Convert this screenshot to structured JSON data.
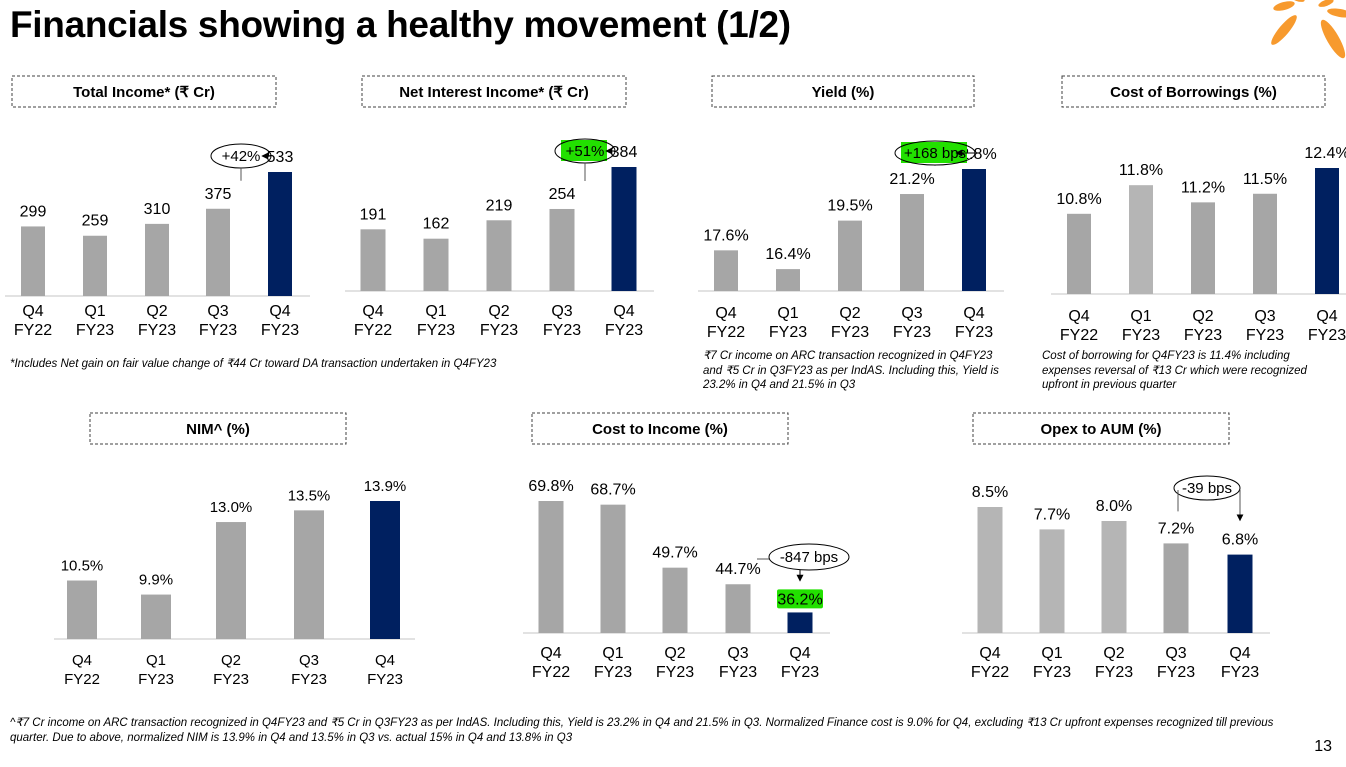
{
  "page": {
    "title": "Financials showing a healthy movement (1/2)",
    "page_number": "13",
    "footnote": "^₹7 Cr income on ARC transaction recognized in Q4FY23 and ₹5 Cr in Q3FY23 as per IndAS. Including this, Yield is 23.2% in Q4 and 21.5% in Q3. Normalized Finance cost is 9.0% for Q4, excluding ₹13 Cr upfront expenses recognized till previous quarter. Due to above, normalized NIM is 13.9% in Q4 and 13.5% in Q3 vs. actual 15% in Q4 and 13.8% in Q3",
    "notes": {
      "total_income": "*Includes Net gain on fair value change of ₹44 Cr toward DA transaction undertaken in Q4FY23",
      "yield": "₹7 Cr income on ARC transaction recognized in Q4FY23 and ₹5 Cr in Q3FY23 as per IndAS. Including this, Yield is 23.2% in Q4 and 21.5% in Q3",
      "cost_of_borrowings": "Cost of borrowing for Q4FY23 is 11.4% including expenses reversal of ₹13 Cr which were recognized upfront in previous quarter"
    }
  },
  "colors": {
    "bar_gray": "#a6a6a6",
    "bar_light_gray": "#b5b5b5",
    "bar_highlight": "#002060",
    "highlight_green": "#22e000",
    "logo_orange": "#f79a2e",
    "axis": "#d9d9d9"
  },
  "chart_data": [
    {
      "id": "total_income",
      "type": "bar",
      "title": "Total Income* (₹ Cr)",
      "categories": [
        "Q4 FY22",
        "Q1 FY23",
        "Q2 FY23",
        "Q3 FY23",
        "Q4 FY23"
      ],
      "category_lines": [
        [
          "Q4",
          "FY22"
        ],
        [
          "Q1",
          "FY23"
        ],
        [
          "Q2",
          "FY23"
        ],
        [
          "Q3",
          "FY23"
        ],
        [
          "Q4",
          "FY23"
        ]
      ],
      "values": [
        299,
        259,
        310,
        375,
        533
      ],
      "labels": [
        "299",
        "259",
        "310",
        "375",
        "533"
      ],
      "highlight_index": 4,
      "annotation": {
        "text": "+42%",
        "from": 3,
        "to": 4,
        "style": "right-arrow",
        "green": false
      },
      "ylim": [
        0,
        600
      ]
    },
    {
      "id": "nii",
      "type": "bar",
      "title": "Net Interest Income* (₹ Cr)",
      "categories": [
        "Q4 FY22",
        "Q1 FY23",
        "Q2 FY23",
        "Q3 FY23",
        "Q4 FY23"
      ],
      "category_lines": [
        [
          "Q4",
          "FY22"
        ],
        [
          "Q1",
          "FY23"
        ],
        [
          "Q2",
          "FY23"
        ],
        [
          "Q3",
          "FY23"
        ],
        [
          "Q4",
          "FY23"
        ]
      ],
      "values": [
        191,
        162,
        219,
        254,
        384
      ],
      "labels": [
        "191",
        "162",
        "219",
        "254",
        "384"
      ],
      "highlight_index": 4,
      "annotation": {
        "text": "+51%",
        "from": 3,
        "to": 4,
        "style": "right-arrow",
        "green": true
      },
      "ylim": [
        0,
        420
      ]
    },
    {
      "id": "yield",
      "type": "bar",
      "title": "Yield (%)",
      "categories": [
        "Q4 FY22",
        "Q1 FY23",
        "Q2 FY23",
        "Q3 FY23",
        "Q4 FY23"
      ],
      "category_lines": [
        [
          "Q4",
          "FY22"
        ],
        [
          "Q1",
          "FY23"
        ],
        [
          "Q2",
          "FY23"
        ],
        [
          "Q3",
          "FY23"
        ],
        [
          "Q4",
          "FY23"
        ]
      ],
      "values": [
        17.6,
        16.4,
        19.5,
        21.2,
        22.8
      ],
      "labels": [
        "17.6%",
        "16.4%",
        "19.5%",
        "21.2%",
        "22.8%"
      ],
      "highlight_index": 4,
      "annotation": {
        "text": "+168 bps",
        "from": 3,
        "to": 4,
        "style": "right-arrow",
        "green": true
      },
      "ylim": [
        15.0,
        24.0
      ]
    },
    {
      "id": "cost_of_borrowings",
      "type": "bar",
      "title": "Cost of Borrowings (%)",
      "categories": [
        "Q4 FY22",
        "Q1 FY23",
        "Q2 FY23",
        "Q3 FY23",
        "Q4 FY23"
      ],
      "category_lines": [
        [
          "Q4",
          "FY22"
        ],
        [
          "Q1",
          "FY23"
        ],
        [
          "Q2",
          "FY23"
        ],
        [
          "Q3",
          "FY23"
        ],
        [
          "Q4",
          "FY23"
        ]
      ],
      "values": [
        10.8,
        11.8,
        11.2,
        11.5,
        12.4
      ],
      "labels": [
        "10.8%",
        "11.8%",
        "11.2%",
        "11.5%",
        "12.4%"
      ],
      "highlight_index": 4,
      "annotation": null,
      "ylim": [
        8.0,
        12.9
      ]
    },
    {
      "id": "nim",
      "type": "bar",
      "title": "NIM^ (%)",
      "categories": [
        "Q4 FY22",
        "Q1 FY23",
        "Q2 FY23",
        "Q3 FY23",
        "Q4 FY23"
      ],
      "category_lines": [
        [
          "Q4",
          "FY22"
        ],
        [
          "Q1",
          "FY23"
        ],
        [
          "Q2",
          "FY23"
        ],
        [
          "Q3",
          "FY23"
        ],
        [
          "Q4",
          "FY23"
        ]
      ],
      "values": [
        10.5,
        9.9,
        13.0,
        13.5,
        13.9
      ],
      "labels": [
        "10.5%",
        "9.9%",
        "13.0%",
        "13.5%",
        "13.9%"
      ],
      "highlight_index": 4,
      "annotation": null,
      "ylim": [
        8.0,
        14.5
      ]
    },
    {
      "id": "cost_to_income",
      "type": "bar",
      "title": "Cost to Income (%)",
      "categories": [
        "Q4 FY22",
        "Q1 FY23",
        "Q2 FY23",
        "Q3 FY23",
        "Q4 FY23"
      ],
      "category_lines": [
        [
          "Q4",
          "FY22"
        ],
        [
          "Q1",
          "FY23"
        ],
        [
          "Q2",
          "FY23"
        ],
        [
          "Q3",
          "FY23"
        ],
        [
          "Q4",
          "FY23"
        ]
      ],
      "values": [
        69.8,
        68.7,
        49.7,
        44.7,
        36.2
      ],
      "labels": [
        "69.8%",
        "68.7%",
        "49.7%",
        "44.7%",
        "36.2%"
      ],
      "highlight_index": 4,
      "highlight_label_green": true,
      "annotation": {
        "text": "-847 bps",
        "from": 3,
        "to": 4,
        "style": "down-arrow",
        "green": false
      },
      "ylim": [
        30.0,
        71.0
      ]
    },
    {
      "id": "opex_to_aum",
      "type": "bar",
      "title": "Opex to AUM (%)",
      "categories": [
        "Q4 FY22",
        "Q1 FY23",
        "Q2 FY23",
        "Q3 FY23",
        "Q4 FY23"
      ],
      "category_lines": [
        [
          "Q4",
          "FY22"
        ],
        [
          "Q1",
          "FY23"
        ],
        [
          "Q2",
          "FY23"
        ],
        [
          "Q3",
          "FY23"
        ],
        [
          "Q4",
          "FY23"
        ]
      ],
      "values": [
        8.5,
        7.7,
        8.0,
        7.2,
        6.8
      ],
      "labels": [
        "8.5%",
        "7.7%",
        "8.0%",
        "7.2%",
        "6.8%"
      ],
      "highlight_index": 4,
      "annotation": {
        "text": "-39 bps",
        "from": 3,
        "to": 4,
        "style": "bracket-down",
        "green": false
      },
      "ylim": [
        4.0,
        8.8
      ]
    }
  ]
}
